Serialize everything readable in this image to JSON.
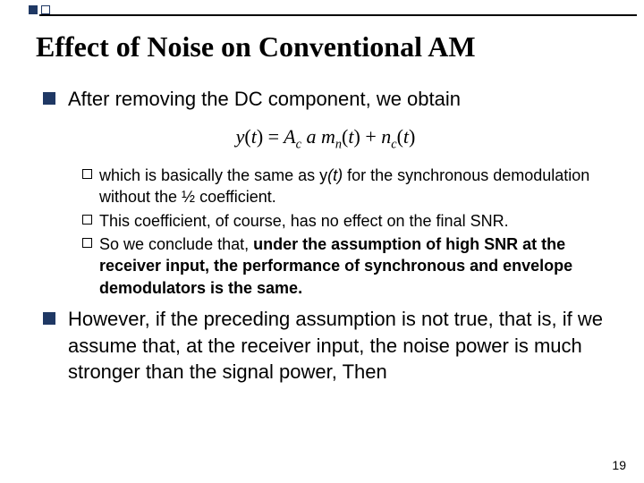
{
  "accent": {
    "squares": [
      {
        "bg": "#1f3864",
        "border": "#1f3864"
      },
      {
        "bg": "#ffffff",
        "border": "#1f3864"
      }
    ]
  },
  "title": "Effect of Noise on Conventional AM",
  "bullet_color": "#1f3864",
  "pageNumber": "19",
  "items": [
    {
      "type": "l1",
      "text": "After removing the DC component, we obtain"
    },
    {
      "type": "eq",
      "html": "<span class='rm'></span>y<span class='rm'>(</span>t<span class='rm'>)</span> <span class='rm'>=</span> A<sub>c</sub> a m<sub>n</sub><span class='rm'>(</span>t<span class='rm'>)</span> <span class='rm'>+</span> n<sub>c</sub><span class='rm'>(</span>t<span class='rm'>)</span>"
    },
    {
      "type": "l2group",
      "children": [
        {
          "html": "which is basically the same as y<i>(t)</i> for the synchronous demodulation without the ½ coefficient."
        },
        {
          "html": "This coefficient, of course, has no effect on the final SNR."
        },
        {
          "html": "So we conclude that, <b>under the assumption of high SNR at the receiver input, the performance of synchronous and envelope demodulators is the same.</b>"
        }
      ]
    },
    {
      "type": "l1",
      "text": "However, if the preceding assumption is not true, that is, if we assume that, at the receiver input, the noise power is much stronger than the signal power, Then"
    }
  ]
}
